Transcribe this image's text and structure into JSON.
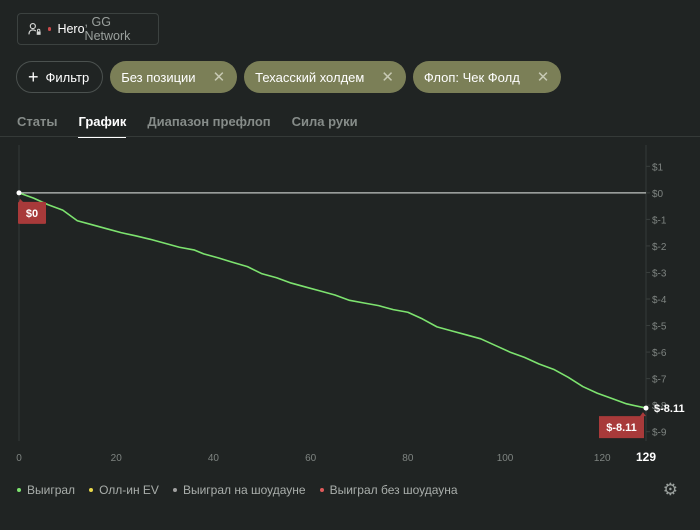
{
  "player": {
    "name": "Hero",
    "network": ", GG Network",
    "icon": "user-lock-icon"
  },
  "filters": {
    "add_label": "Фильтр",
    "active": [
      "Без позиции",
      "Техасский холдем",
      "Флоп: Чек Фолд"
    ]
  },
  "tabs": [
    {
      "label": "Статы",
      "active": false
    },
    {
      "label": "График",
      "active": true
    },
    {
      "label": "Диапазон префлоп",
      "active": false
    },
    {
      "label": "Сила руки",
      "active": false
    }
  ],
  "chart_data": {
    "type": "line",
    "x_ticks": [
      "0",
      "20",
      "40",
      "60",
      "80",
      "100",
      "120"
    ],
    "x_end_label": "129",
    "xlim": [
      0,
      129
    ],
    "y_ticks": [
      "$1",
      "$0",
      "$-1",
      "$-2",
      "$-3",
      "$-4",
      "$-5",
      "$-6",
      "$-7",
      "$-8",
      "$-9"
    ],
    "ylim": [
      -9.2,
      1.2
    ],
    "y_axis_side": "right",
    "start_label": "$0",
    "end_label": "$-8.11",
    "end_value_label": "$-8.11",
    "series": [
      {
        "name": "Выиграл",
        "color": "#7de36f",
        "x": [
          0,
          3,
          6,
          9,
          12,
          15,
          18,
          21,
          24,
          27,
          30,
          33,
          36,
          38,
          41,
          44,
          47,
          50,
          53,
          56,
          59,
          62,
          65,
          68,
          71,
          74,
          77,
          80,
          83,
          86,
          89,
          92,
          95,
          98,
          101,
          104,
          107,
          110,
          113,
          116,
          119,
          122,
          125,
          129
        ],
        "values": [
          0,
          -0.2,
          -0.45,
          -0.65,
          -1.05,
          -1.2,
          -1.35,
          -1.5,
          -1.62,
          -1.75,
          -1.9,
          -2.05,
          -2.15,
          -2.3,
          -2.45,
          -2.62,
          -2.78,
          -3.05,
          -3.2,
          -3.4,
          -3.55,
          -3.7,
          -3.85,
          -4.05,
          -4.15,
          -4.25,
          -4.4,
          -4.5,
          -4.75,
          -5.05,
          -5.2,
          -5.35,
          -5.5,
          -5.75,
          -6.0,
          -6.2,
          -6.45,
          -6.65,
          -6.95,
          -7.3,
          -7.55,
          -7.75,
          -7.95,
          -8.11
        ]
      }
    ],
    "zero_line_color": "#bfc4c1",
    "badge_color": "#a83a3a",
    "legend": [
      {
        "label": "Выиграл",
        "color": "#7de36f"
      },
      {
        "label": "Олл-ин EV",
        "color": "#e8d84a"
      },
      {
        "label": "Выиграл на шоудауне",
        "color": "#a0a0a0"
      },
      {
        "label": "Выиграл без шоудауна",
        "color": "#e05a5a"
      }
    ]
  },
  "settings_icon": "gear-icon"
}
